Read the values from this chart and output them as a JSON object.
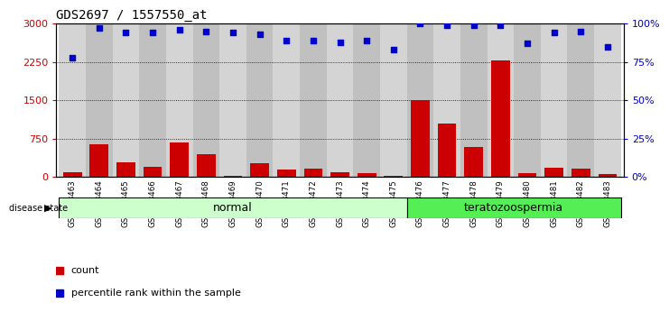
{
  "title": "GDS2697 / 1557550_at",
  "samples": [
    "GSM158463",
    "GSM158464",
    "GSM158465",
    "GSM158466",
    "GSM158467",
    "GSM158468",
    "GSM158469",
    "GSM158470",
    "GSM158471",
    "GSM158472",
    "GSM158473",
    "GSM158474",
    "GSM158475",
    "GSM158476",
    "GSM158477",
    "GSM158478",
    "GSM158479",
    "GSM158480",
    "GSM158481",
    "GSM158482",
    "GSM158483"
  ],
  "counts": [
    100,
    630,
    290,
    200,
    680,
    450,
    20,
    260,
    150,
    160,
    90,
    70,
    20,
    1500,
    1050,
    590,
    2280,
    70,
    175,
    160,
    60
  ],
  "percentiles": [
    78,
    97,
    94,
    94,
    96,
    95,
    94,
    93,
    89,
    89,
    88,
    89,
    83,
    100,
    99,
    99,
    99,
    87,
    94,
    95,
    85
  ],
  "disease_state": [
    "normal",
    "normal",
    "normal",
    "normal",
    "normal",
    "normal",
    "normal",
    "normal",
    "normal",
    "normal",
    "normal",
    "normal",
    "normal",
    "teratozoospermia",
    "teratozoospermia",
    "teratozoospermia",
    "teratozoospermia",
    "teratozoospermia",
    "teratozoospermia",
    "teratozoospermia",
    "teratozoospermia"
  ],
  "normal_color": "#ccffcc",
  "terato_color": "#55ee55",
  "bar_color": "#cc0000",
  "dot_color": "#0000cc",
  "left_ylim": [
    0,
    3000
  ],
  "left_yticks": [
    0,
    750,
    1500,
    2250,
    3000
  ],
  "right_ylim": [
    0,
    100
  ],
  "right_yticks": [
    0,
    25,
    50,
    75,
    100
  ],
  "col_bg_even": "#d4d4d4",
  "col_bg_odd": "#c0c0c0",
  "dotted_lines": [
    750,
    1500,
    2250
  ]
}
